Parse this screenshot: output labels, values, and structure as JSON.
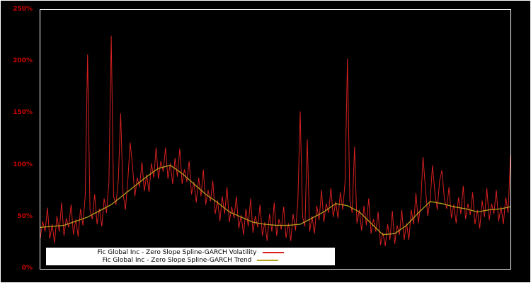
{
  "colors": {
    "background": "#000000",
    "frame_border": "#ffffff",
    "axis_label": "#cc0000",
    "volatility_line": "#d62020",
    "trend_line": "#b5a01e",
    "legend_background": "#ffffff",
    "legend_text": "#000000"
  },
  "chart_data": {
    "type": "line",
    "title": "",
    "xlabel": "",
    "ylabel": "",
    "ylim": [
      0,
      250
    ],
    "y_ticks": [
      "0%",
      "50%",
      "100%",
      "150%",
      "200%",
      "250%"
    ],
    "grid": "off",
    "legend_position": "bottom-center",
    "series": [
      {
        "name": "Fic Global Inc - Zero Slope Spline-GARCH Volatility",
        "color": "#d62020",
        "unit": "percent",
        "values": [
          30,
          46,
          36,
          59,
          29,
          43,
          25,
          51,
          36,
          64,
          32,
          49,
          40,
          62,
          33,
          48,
          31,
          58,
          42,
          71,
          207,
          57,
          48,
          72,
          43,
          58,
          41,
          68,
          54,
          83,
          225,
          70,
          62,
          85,
          150,
          73,
          57,
          85,
          122,
          100,
          70,
          88,
          79,
          103,
          75,
          91,
          74,
          102,
          88,
          117,
          87,
          104,
          94,
          117,
          87,
          102,
          82,
          107,
          89,
          116,
          82,
          96,
          84,
          104,
          72,
          84,
          64,
          88,
          70,
          96,
          62,
          76,
          65,
          85,
          53,
          66,
          46,
          70,
          53,
          79,
          45,
          60,
          49,
          70,
          39,
          52,
          33,
          58,
          41,
          68,
          35,
          51,
          40,
          62,
          32,
          45,
          27,
          53,
          36,
          64,
          32,
          48,
          38,
          60,
          30,
          44,
          27,
          53,
          37,
          65,
          152,
          50,
          41,
          125,
          36,
          51,
          34,
          61,
          47,
          76,
          45,
          63,
          54,
          78,
          50,
          65,
          49,
          74,
          57,
          84,
          203,
          66,
          54,
          118,
          44,
          57,
          37,
          61,
          42,
          68,
          34,
          48,
          36,
          55,
          23,
          35,
          22,
          43,
          28,
          56,
          24,
          42,
          33,
          57,
          28,
          44,
          28,
          57,
          43,
          73,
          44,
          62,
          108,
          78,
          51,
          67,
          100,
          74,
          57,
          85,
          95,
          68,
          58,
          79,
          49,
          62,
          44,
          69,
          53,
          80,
          48,
          63,
          52,
          74,
          43,
          57,
          39,
          66,
          50,
          78,
          47,
          63,
          53,
          76,
          46,
          60,
          43,
          69,
          54,
          110
        ]
      },
      {
        "name": "Fic Global Inc - Zero Slope Spline-GARCH Trend",
        "color": "#b5a01e",
        "unit": "percent",
        "x": [
          0,
          5,
          10,
          15,
          20,
          25,
          30,
          35,
          40,
          45,
          50,
          55,
          60,
          65,
          70,
          75,
          80,
          85,
          90,
          95,
          100,
          105,
          110,
          115,
          120,
          125,
          130,
          135,
          140,
          145,
          150,
          155,
          160,
          165,
          170,
          175,
          180,
          185,
          190,
          195,
          199
        ],
        "values": [
          40,
          41,
          42,
          46,
          50,
          56,
          62,
          71,
          80,
          89,
          97,
          100,
          92,
          82,
          72,
          64,
          55,
          50,
          45,
          43,
          42,
          42,
          43,
          49,
          55,
          63,
          61,
          55,
          44,
          33,
          34,
          42,
          54,
          65,
          63,
          60,
          58,
          55,
          57,
          58,
          60
        ]
      }
    ]
  },
  "legend": {
    "items": [
      {
        "label": "Fic Global Inc - Zero Slope Spline-GARCH Volatility"
      },
      {
        "label": "Fic Global Inc - Zero Slope Spline-GARCH Trend"
      }
    ]
  }
}
